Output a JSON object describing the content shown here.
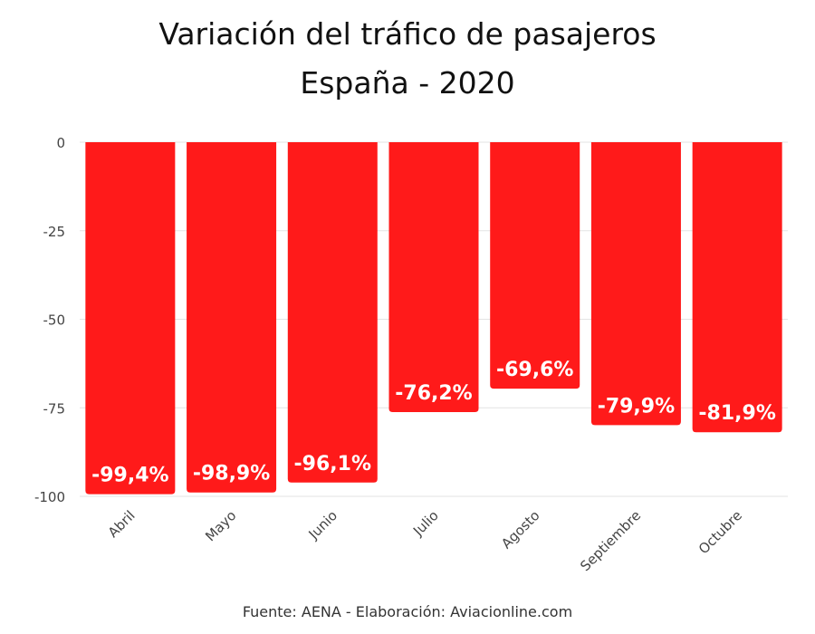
{
  "title_line1": "Variación del tráfico de pasajeros",
  "title_line2": "España - 2020",
  "source": "Fuente: AENA - Elaboración: Aviacionline.com",
  "chart_data": {
    "type": "bar",
    "title": "Variación del tráfico de pasajeros España - 2020",
    "categories": [
      "Abril",
      "Mayo",
      "Junio",
      "Julio",
      "Agosto",
      "Septiembre",
      "Octubre"
    ],
    "values": [
      -99.4,
      -98.9,
      -96.1,
      -76.2,
      -69.6,
      -79.9,
      -81.9
    ],
    "data_labels": [
      "-99,4%",
      "-98,9%",
      "-96,1%",
      "-76,2%",
      "-69,6%",
      "-79,9%",
      "-81,9%"
    ],
    "yticks": [
      "0",
      "-25",
      "-50",
      "-75",
      "-100"
    ],
    "ytick_values": [
      0,
      -25,
      -50,
      -75,
      -100
    ],
    "ylim": [
      -100,
      0
    ],
    "xlabel": "",
    "ylabel": "",
    "grid": true,
    "legend": "none",
    "bar_color": "#ff1a1a"
  }
}
